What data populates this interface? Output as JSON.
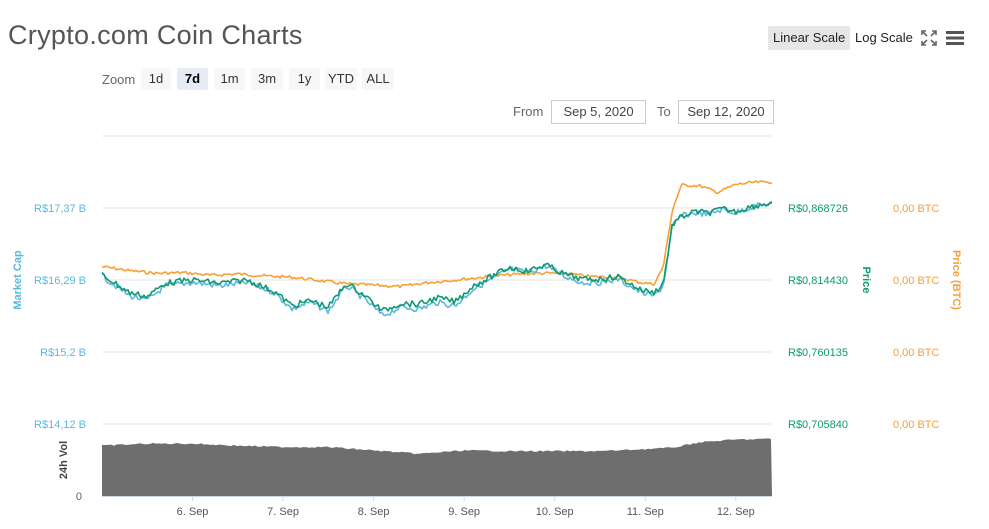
{
  "header": {
    "title": "Crypto.com Coin Charts",
    "linear_scale_label": "Linear Scale",
    "log_scale_label": "Log Scale",
    "fullscreen_icon": "fullscreen-icon",
    "menu_icon": "hamburger-menu-icon"
  },
  "zoom": {
    "label": "Zoom",
    "options": [
      "1d",
      "7d",
      "1m",
      "3m",
      "1y",
      "YTD",
      "ALL"
    ],
    "selected": "7d"
  },
  "range": {
    "from_label": "From",
    "from_value": "Sep 5, 2020",
    "to_label": "To",
    "to_value": "Sep 12, 2020"
  },
  "colors": {
    "market_cap": "#5bb8dc",
    "price": "#0f9a72",
    "price_btc": "#f7a035",
    "volume": "#6e6e6e",
    "grid": "#e6e6e6"
  },
  "chart_data": {
    "type": "line",
    "x_labels": [
      "6. Sep",
      "7. Sep",
      "8. Sep",
      "9. Sep",
      "10. Sep",
      "11. Sep",
      "12. Sep"
    ],
    "axes": {
      "market_cap": {
        "title": "Market Cap",
        "ticks": [
          "R$17,37 B",
          "R$16,29 B",
          "R$15,2 B",
          "R$14,12 B"
        ],
        "ylim": [
          14.12,
          17.37
        ]
      },
      "price": {
        "title": "Price",
        "ticks": [
          "R$0,868726",
          "R$0,814430",
          "R$0,760135",
          "R$0,705840"
        ],
        "ylim": [
          0.70584,
          0.868726
        ]
      },
      "price_btc": {
        "title": "Price (BTC)",
        "ticks": [
          "0,00 BTC",
          "0,00 BTC",
          "0,00 BTC",
          "0,00 BTC"
        ]
      },
      "volume": {
        "title": "24h Vol",
        "ticks": [
          "0"
        ]
      }
    },
    "series": [
      {
        "name": "Market Cap",
        "x": [
          5.0,
          5.3,
          5.5,
          5.7,
          6.0,
          6.3,
          6.6,
          6.9,
          7.1,
          7.3,
          7.5,
          7.7,
          7.9,
          8.1,
          8.3,
          8.5,
          8.7,
          8.9,
          9.1,
          9.3,
          9.5,
          9.7,
          9.9,
          10.1,
          10.3,
          10.5,
          10.7,
          10.95,
          11.1,
          11.2,
          11.3,
          11.4,
          11.55,
          11.7,
          11.85,
          12.0,
          12.15,
          12.3,
          12.45
        ],
        "values": [
          16.35,
          16.05,
          15.98,
          16.2,
          16.25,
          16.2,
          16.25,
          16.1,
          15.85,
          15.95,
          15.82,
          16.2,
          16.0,
          15.75,
          15.88,
          15.85,
          15.95,
          15.9,
          16.15,
          16.3,
          16.45,
          16.4,
          16.5,
          16.35,
          16.25,
          16.25,
          16.3,
          16.1,
          16.05,
          16.2,
          17.1,
          17.25,
          17.3,
          17.28,
          17.35,
          17.3,
          17.38,
          17.42,
          17.45
        ]
      },
      {
        "name": "Price",
        "x": [
          5.0,
          5.3,
          5.5,
          5.7,
          6.0,
          6.3,
          6.6,
          6.9,
          7.1,
          7.3,
          7.5,
          7.7,
          7.9,
          8.1,
          8.3,
          8.5,
          8.7,
          8.9,
          9.1,
          9.3,
          9.5,
          9.7,
          9.9,
          10.1,
          10.3,
          10.5,
          10.7,
          10.95,
          11.1,
          11.2,
          11.3,
          11.4,
          11.55,
          11.7,
          11.85,
          12.0,
          12.15,
          12.3,
          12.45
        ],
        "values": [
          0.8185,
          0.805,
          0.802,
          0.812,
          0.8145,
          0.812,
          0.8145,
          0.806,
          0.795,
          0.799,
          0.794,
          0.812,
          0.803,
          0.791,
          0.797,
          0.796,
          0.801,
          0.798,
          0.81,
          0.817,
          0.824,
          0.821,
          0.826,
          0.819,
          0.815,
          0.815,
          0.817,
          0.807,
          0.805,
          0.812,
          0.8565,
          0.862,
          0.866,
          0.865,
          0.868,
          0.866,
          0.8695,
          0.8715,
          0.873
        ]
      },
      {
        "name": "Price (BTC)",
        "x": [
          5.0,
          5.3,
          5.6,
          5.9,
          6.2,
          6.5,
          6.8,
          7.1,
          7.4,
          7.7,
          8.0,
          8.3,
          8.6,
          8.9,
          9.2,
          9.5,
          9.8,
          10.1,
          10.4,
          10.7,
          10.95,
          11.1,
          11.2,
          11.3,
          11.4,
          11.6,
          11.8,
          12.0,
          12.2,
          12.45
        ],
        "values": [
          0.8245,
          0.8215,
          0.8195,
          0.82,
          0.818,
          0.819,
          0.8175,
          0.8165,
          0.814,
          0.8115,
          0.8105,
          0.8095,
          0.8125,
          0.8145,
          0.8165,
          0.8185,
          0.8195,
          0.8195,
          0.817,
          0.8165,
          0.8125,
          0.8115,
          0.8245,
          0.8675,
          0.886,
          0.8855,
          0.8805,
          0.8865,
          0.888,
          0.8885
        ]
      },
      {
        "name": "24h Vol",
        "x": [
          5.0,
          5.5,
          6.0,
          6.5,
          7.0,
          7.5,
          8.0,
          8.5,
          9.0,
          9.5,
          10.0,
          10.5,
          11.0,
          11.3,
          11.6,
          12.0,
          12.4
        ],
        "values": [
          0.74,
          0.77,
          0.77,
          0.74,
          0.72,
          0.72,
          0.67,
          0.62,
          0.67,
          0.66,
          0.66,
          0.66,
          0.69,
          0.71,
          0.79,
          0.83,
          0.84
        ]
      }
    ],
    "xlim": [
      5.0,
      12.4
    ],
    "grid": true,
    "legend": "none"
  }
}
